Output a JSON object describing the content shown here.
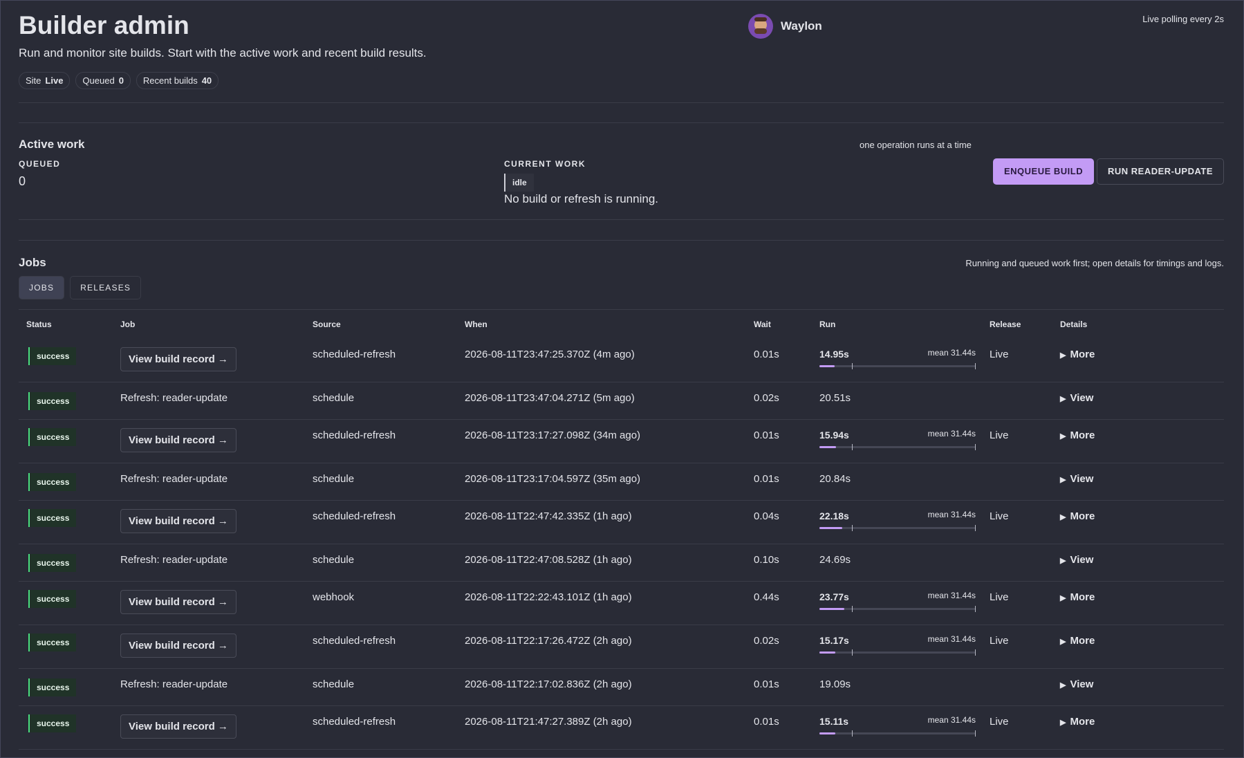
{
  "header": {
    "title": "Builder admin",
    "subtitle": "Run and monitor site builds. Start with the active work and recent build results.",
    "user": "Waylon",
    "polling": "Live polling every 2s",
    "pills": [
      {
        "label": "Site",
        "value": "Live"
      },
      {
        "label": "Queued",
        "value": "0"
      },
      {
        "label": "Recent builds",
        "value": "40"
      }
    ]
  },
  "active": {
    "title": "Active work",
    "note": "one operation runs at a time",
    "queued_label": "QUEUED",
    "queued_value": "0",
    "current_label": "CURRENT WORK",
    "status": "idle",
    "message": "No build or refresh is running.",
    "buttons": [
      "ENQUEUE BUILD",
      "RUN READER-UPDATE"
    ]
  },
  "jobs": {
    "title": "Jobs",
    "note": "Running and queued work first; open details for timings and logs.",
    "tabs": [
      "JOBS",
      "RELEASES"
    ],
    "columns": [
      "Status",
      "Job",
      "Source",
      "When",
      "Wait",
      "Run",
      "Release",
      "Details"
    ],
    "rows": [
      {
        "status": "success",
        "job": "View build record →",
        "source": "scheduled-refresh",
        "when": "2026-08-11T23:47:25.370Z (4m ago)",
        "wait": "0.01s",
        "run": "14.95s",
        "mean": "mean 31.44s",
        "release": "Live",
        "details": "More"
      },
      {
        "status": "success",
        "job": "Refresh: reader-update",
        "source": "schedule",
        "when": "2026-08-11T23:47:04.271Z (5m ago)",
        "wait": "0.02s",
        "run": "20.51s",
        "details": "View"
      },
      {
        "status": "success",
        "job": "View build record →",
        "source": "scheduled-refresh",
        "when": "2026-08-11T23:17:27.098Z (34m ago)",
        "wait": "0.01s",
        "run": "15.94s",
        "mean": "mean 31.44s",
        "release": "Live",
        "details": "More"
      },
      {
        "status": "success",
        "job": "Refresh: reader-update",
        "source": "schedule",
        "when": "2026-08-11T23:17:04.597Z (35m ago)",
        "wait": "0.01s",
        "run": "20.84s",
        "details": "View"
      },
      {
        "status": "success",
        "job": "View build record →",
        "source": "scheduled-refresh",
        "when": "2026-08-11T22:47:42.335Z (1h ago)",
        "wait": "0.04s",
        "run": "22.18s",
        "mean": "mean 31.44s",
        "release": "Live",
        "details": "More"
      },
      {
        "status": "success",
        "job": "Refresh: reader-update",
        "source": "schedule",
        "when": "2026-08-11T22:47:08.528Z (1h ago)",
        "wait": "0.10s",
        "run": "24.69s",
        "details": "View"
      },
      {
        "status": "success",
        "job": "View build record →",
        "source": "webhook",
        "when": "2026-08-11T22:22:43.101Z (1h ago)",
        "wait": "0.44s",
        "run": "23.77s",
        "mean": "mean 31.44s",
        "release": "Live",
        "details": "More"
      },
      {
        "status": "success",
        "job": "View build record →",
        "source": "scheduled-refresh",
        "when": "2026-08-11T22:17:26.472Z (2h ago)",
        "wait": "0.02s",
        "run": "15.17s",
        "mean": "mean 31.44s",
        "release": "Live",
        "details": "More"
      },
      {
        "status": "success",
        "job": "Refresh: reader-update",
        "source": "schedule",
        "when": "2026-08-11T22:17:02.836Z (2h ago)",
        "wait": "0.01s",
        "run": "19.09s",
        "details": "View"
      },
      {
        "status": "success",
        "job": "View build record →",
        "source": "scheduled-refresh",
        "when": "2026-08-11T21:47:27.389Z (2h ago)",
        "wait": "0.01s",
        "run": "15.11s",
        "mean": "mean 31.44s",
        "release": "Live",
        "details": "More"
      }
    ]
  }
}
